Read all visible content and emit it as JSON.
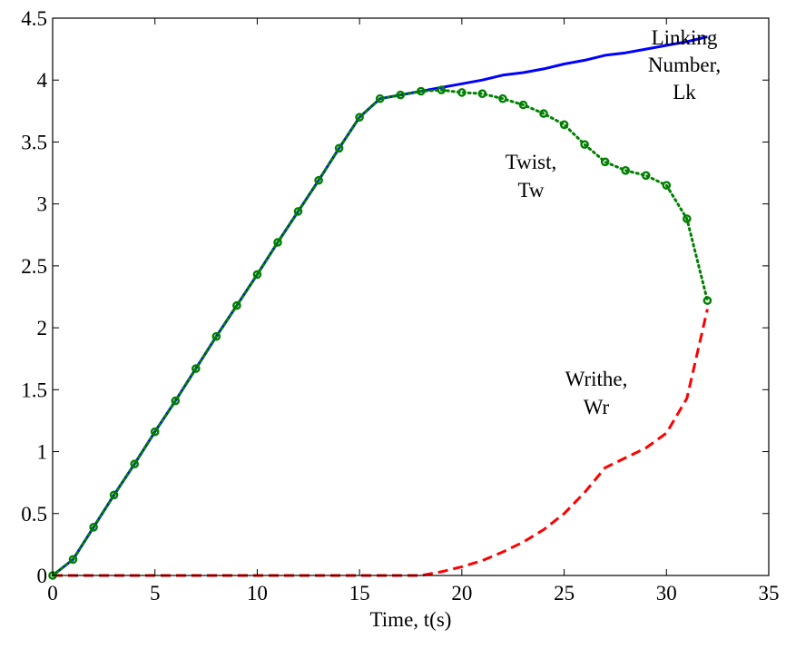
{
  "chart_data": {
    "type": "line",
    "title": "",
    "xlabel": "Time, t(s)",
    "ylabel": "",
    "xlim": [
      0,
      35
    ],
    "ylim": [
      0,
      4.5
    ],
    "xticks": [
      "0",
      "5",
      "10",
      "15",
      "20",
      "25",
      "30",
      "35"
    ],
    "yticks": [
      "0",
      "0.5",
      "1",
      "1.5",
      "2",
      "2.5",
      "3",
      "3.5",
      "4",
      "4.5"
    ],
    "grid": false,
    "legend": "none",
    "series": [
      {
        "key": "lk",
        "color": "#0000ff",
        "style": "solid",
        "marker": "none",
        "x": [
          0,
          1,
          2,
          3,
          4,
          5,
          6,
          7,
          8,
          9,
          10,
          11,
          12,
          13,
          14,
          15,
          16,
          17,
          18,
          19,
          20,
          21,
          22,
          23,
          24,
          25,
          26,
          27,
          28,
          29,
          30,
          31,
          32
        ],
        "y": [
          0,
          0.13,
          0.39,
          0.65,
          0.9,
          1.16,
          1.41,
          1.67,
          1.93,
          2.18,
          2.43,
          2.69,
          2.94,
          3.19,
          3.45,
          3.7,
          3.85,
          3.88,
          3.91,
          3.94,
          3.97,
          4.0,
          4.04,
          4.06,
          4.09,
          4.13,
          4.16,
          4.2,
          4.22,
          4.25,
          4.28,
          4.31,
          4.35
        ]
      },
      {
        "key": "tw",
        "color": "#008000",
        "style": "dotted",
        "marker": "circle",
        "x": [
          0,
          1,
          2,
          3,
          4,
          5,
          6,
          7,
          8,
          9,
          10,
          11,
          12,
          13,
          14,
          15,
          16,
          17,
          18,
          19,
          20,
          21,
          22,
          23,
          24,
          25,
          26,
          27,
          28,
          29,
          30,
          31,
          32
        ],
        "y": [
          0,
          0.13,
          0.39,
          0.65,
          0.9,
          1.16,
          1.41,
          1.67,
          1.93,
          2.18,
          2.43,
          2.69,
          2.94,
          3.19,
          3.45,
          3.7,
          3.85,
          3.88,
          3.91,
          3.92,
          3.9,
          3.89,
          3.85,
          3.8,
          3.73,
          3.64,
          3.48,
          3.34,
          3.27,
          3.23,
          3.15,
          2.88,
          2.22
        ]
      },
      {
        "key": "wr",
        "color": "#ff0000",
        "style": "dashed",
        "marker": "none",
        "x": [
          0,
          2,
          4,
          6,
          8,
          10,
          12,
          14,
          16,
          18,
          19,
          20,
          21,
          22,
          23,
          24,
          25,
          26,
          27,
          28,
          29,
          30,
          31,
          32
        ],
        "y": [
          0,
          0,
          0,
          0,
          0,
          0,
          0,
          0,
          0,
          0,
          0.03,
          0.07,
          0.12,
          0.19,
          0.27,
          0.37,
          0.5,
          0.67,
          0.87,
          0.95,
          1.03,
          1.15,
          1.43,
          2.15
        ]
      }
    ],
    "annotations": [
      {
        "key": "lk",
        "lines": [
          "Linking",
          "Number,",
          "Lk"
        ]
      },
      {
        "key": "tw",
        "lines": [
          "Twist,",
          "Tw"
        ]
      },
      {
        "key": "wr",
        "lines": [
          "Writhe,",
          "Wr"
        ]
      }
    ]
  }
}
